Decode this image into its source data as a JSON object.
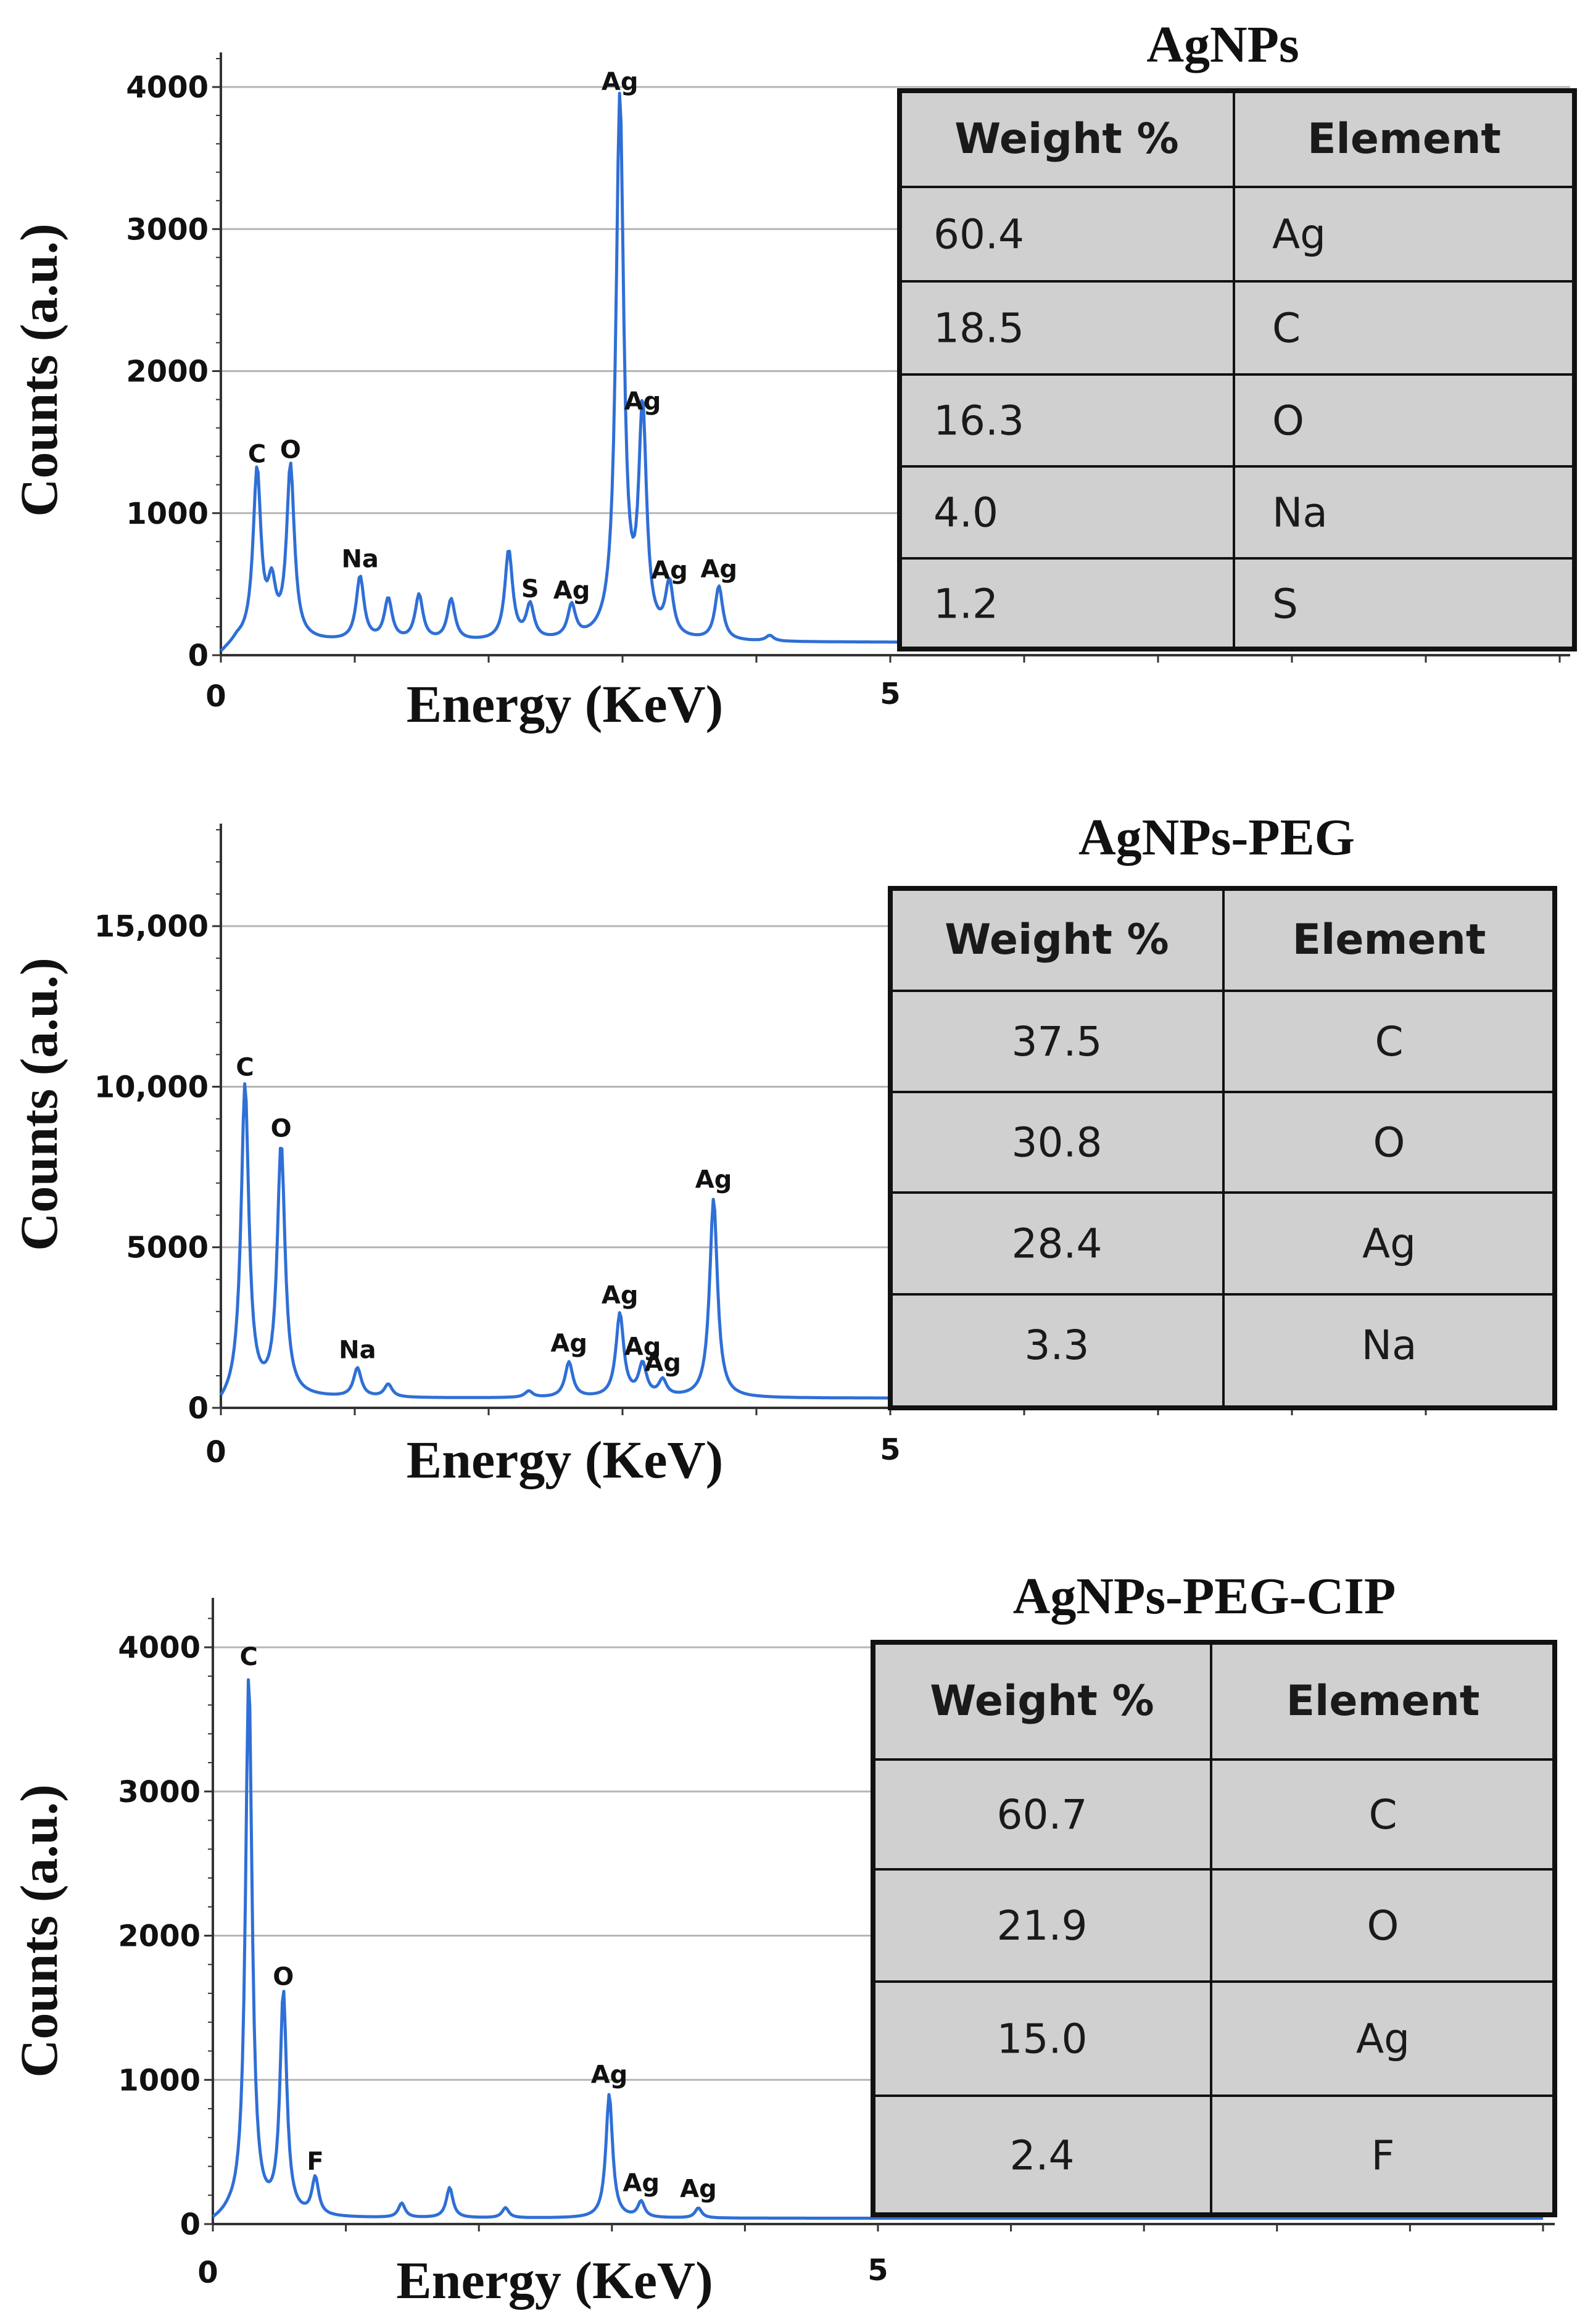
{
  "colors": {
    "spectrum": "#2f6fd6",
    "grid": "#b5b5b5",
    "axis": "#333333",
    "table_fill": "#d0d0d0",
    "table_border": "#111111"
  },
  "chart_data": [
    {
      "type": "line",
      "title": "AgNPs",
      "xlabel": "Energy (KeV)",
      "ylabel": "Counts (a.u.)",
      "xlim": [
        0,
        10
      ],
      "ylim": [
        0,
        4200
      ],
      "x_tick_labels": [
        "0",
        "5"
      ],
      "y_ticks": [
        0,
        1000,
        2000,
        3000,
        4000
      ],
      "y_tick_labels": [
        "0",
        "1000",
        "2000",
        "3000",
        "4000"
      ],
      "baseline": 90,
      "peaks": [
        {
          "label": "C",
          "x": 0.27,
          "y": 1280
        },
        {
          "label": "",
          "x": 0.38,
          "y": 430
        },
        {
          "label": "O",
          "x": 0.52,
          "y": 1310
        },
        {
          "label": "Na",
          "x": 1.04,
          "y": 540
        },
        {
          "label": "",
          "x": 1.25,
          "y": 380
        },
        {
          "label": "",
          "x": 1.48,
          "y": 410
        },
        {
          "label": "",
          "x": 1.72,
          "y": 380
        },
        {
          "label": "",
          "x": 2.15,
          "y": 720
        },
        {
          "label": "S",
          "x": 2.31,
          "y": 330
        },
        {
          "label": "Ag",
          "x": 2.62,
          "y": 320
        },
        {
          "label": "Ag",
          "x": 2.98,
          "y": 3900
        },
        {
          "label": "Ag",
          "x": 3.15,
          "y": 1650
        },
        {
          "label": "Ag",
          "x": 3.35,
          "y": 460
        },
        {
          "label": "Ag",
          "x": 3.72,
          "y": 470
        },
        {
          "label": "",
          "x": 4.1,
          "y": 130
        }
      ],
      "table": {
        "headers": [
          "Weight %",
          "Element"
        ],
        "rows": [
          [
            "60.4",
            "Ag"
          ],
          [
            "18.5",
            "C"
          ],
          [
            "16.3",
            "O"
          ],
          [
            "4.0",
            "Na"
          ],
          [
            "1.2",
            "S"
          ]
        ]
      }
    },
    {
      "type": "line",
      "title": "AgNPs-PEG",
      "xlabel": "Energy (KeV)",
      "ylabel": "Counts (a.u.)",
      "xlim": [
        0,
        10
      ],
      "ylim": [
        0,
        18000
      ],
      "x_tick_labels": [
        "0",
        "5"
      ],
      "y_ticks": [
        0,
        5000,
        10000,
        15000
      ],
      "y_tick_labels": [
        "0",
        "5000",
        "10,000",
        "15,000"
      ],
      "baseline": 300,
      "peaks": [
        {
          "label": "C",
          "x": 0.18,
          "y": 10000
        },
        {
          "label": "O",
          "x": 0.45,
          "y": 8100
        },
        {
          "label": "Na",
          "x": 1.02,
          "y": 1200
        },
        {
          "label": "",
          "x": 1.25,
          "y": 700
        },
        {
          "label": "",
          "x": 2.3,
          "y": 500
        },
        {
          "label": "Ag",
          "x": 2.6,
          "y": 1400
        },
        {
          "label": "Ag",
          "x": 2.98,
          "y": 2900
        },
        {
          "label": "Ag",
          "x": 3.15,
          "y": 1300
        },
        {
          "label": "Ag",
          "x": 3.3,
          "y": 800
        },
        {
          "label": "Ag",
          "x": 3.68,
          "y": 6500
        },
        {
          "label": "",
          "x": 4.0,
          "y": 300
        }
      ],
      "table": {
        "headers": [
          "Weight %",
          "Element"
        ],
        "rows": [
          [
            "37.5",
            "C"
          ],
          [
            "30.8",
            "O"
          ],
          [
            "28.4",
            "Ag"
          ],
          [
            "3.3",
            "Na"
          ]
        ]
      }
    },
    {
      "type": "line",
      "title": "AgNPs-PEG-CIP",
      "xlabel": "Energy (KeV)",
      "ylabel": "Counts (a.u.)",
      "xlim": [
        0,
        10
      ],
      "ylim": [
        0,
        4300
      ],
      "x_tick_labels": [
        "0",
        "5"
      ],
      "y_ticks": [
        0,
        1000,
        2000,
        3000,
        4000
      ],
      "y_tick_labels": [
        "0",
        "1000",
        "2000",
        "3000",
        "4000"
      ],
      "baseline": 40,
      "peaks": [
        {
          "label": "C",
          "x": 0.27,
          "y": 3800
        },
        {
          "label": "O",
          "x": 0.53,
          "y": 1580
        },
        {
          "label": "F",
          "x": 0.77,
          "y": 300
        },
        {
          "label": "",
          "x": 1.42,
          "y": 140
        },
        {
          "label": "",
          "x": 1.78,
          "y": 250
        },
        {
          "label": "",
          "x": 2.2,
          "y": 110
        },
        {
          "label": "Ag",
          "x": 2.98,
          "y": 900
        },
        {
          "label": "Ag",
          "x": 3.22,
          "y": 150
        },
        {
          "label": "Ag",
          "x": 3.65,
          "y": 110
        }
      ],
      "table": {
        "headers": [
          "Weight %",
          "Element"
        ],
        "rows": [
          [
            "60.7",
            "C"
          ],
          [
            "21.9",
            "O"
          ],
          [
            "15.0",
            "Ag"
          ],
          [
            "2.4",
            "F"
          ]
        ]
      }
    }
  ]
}
